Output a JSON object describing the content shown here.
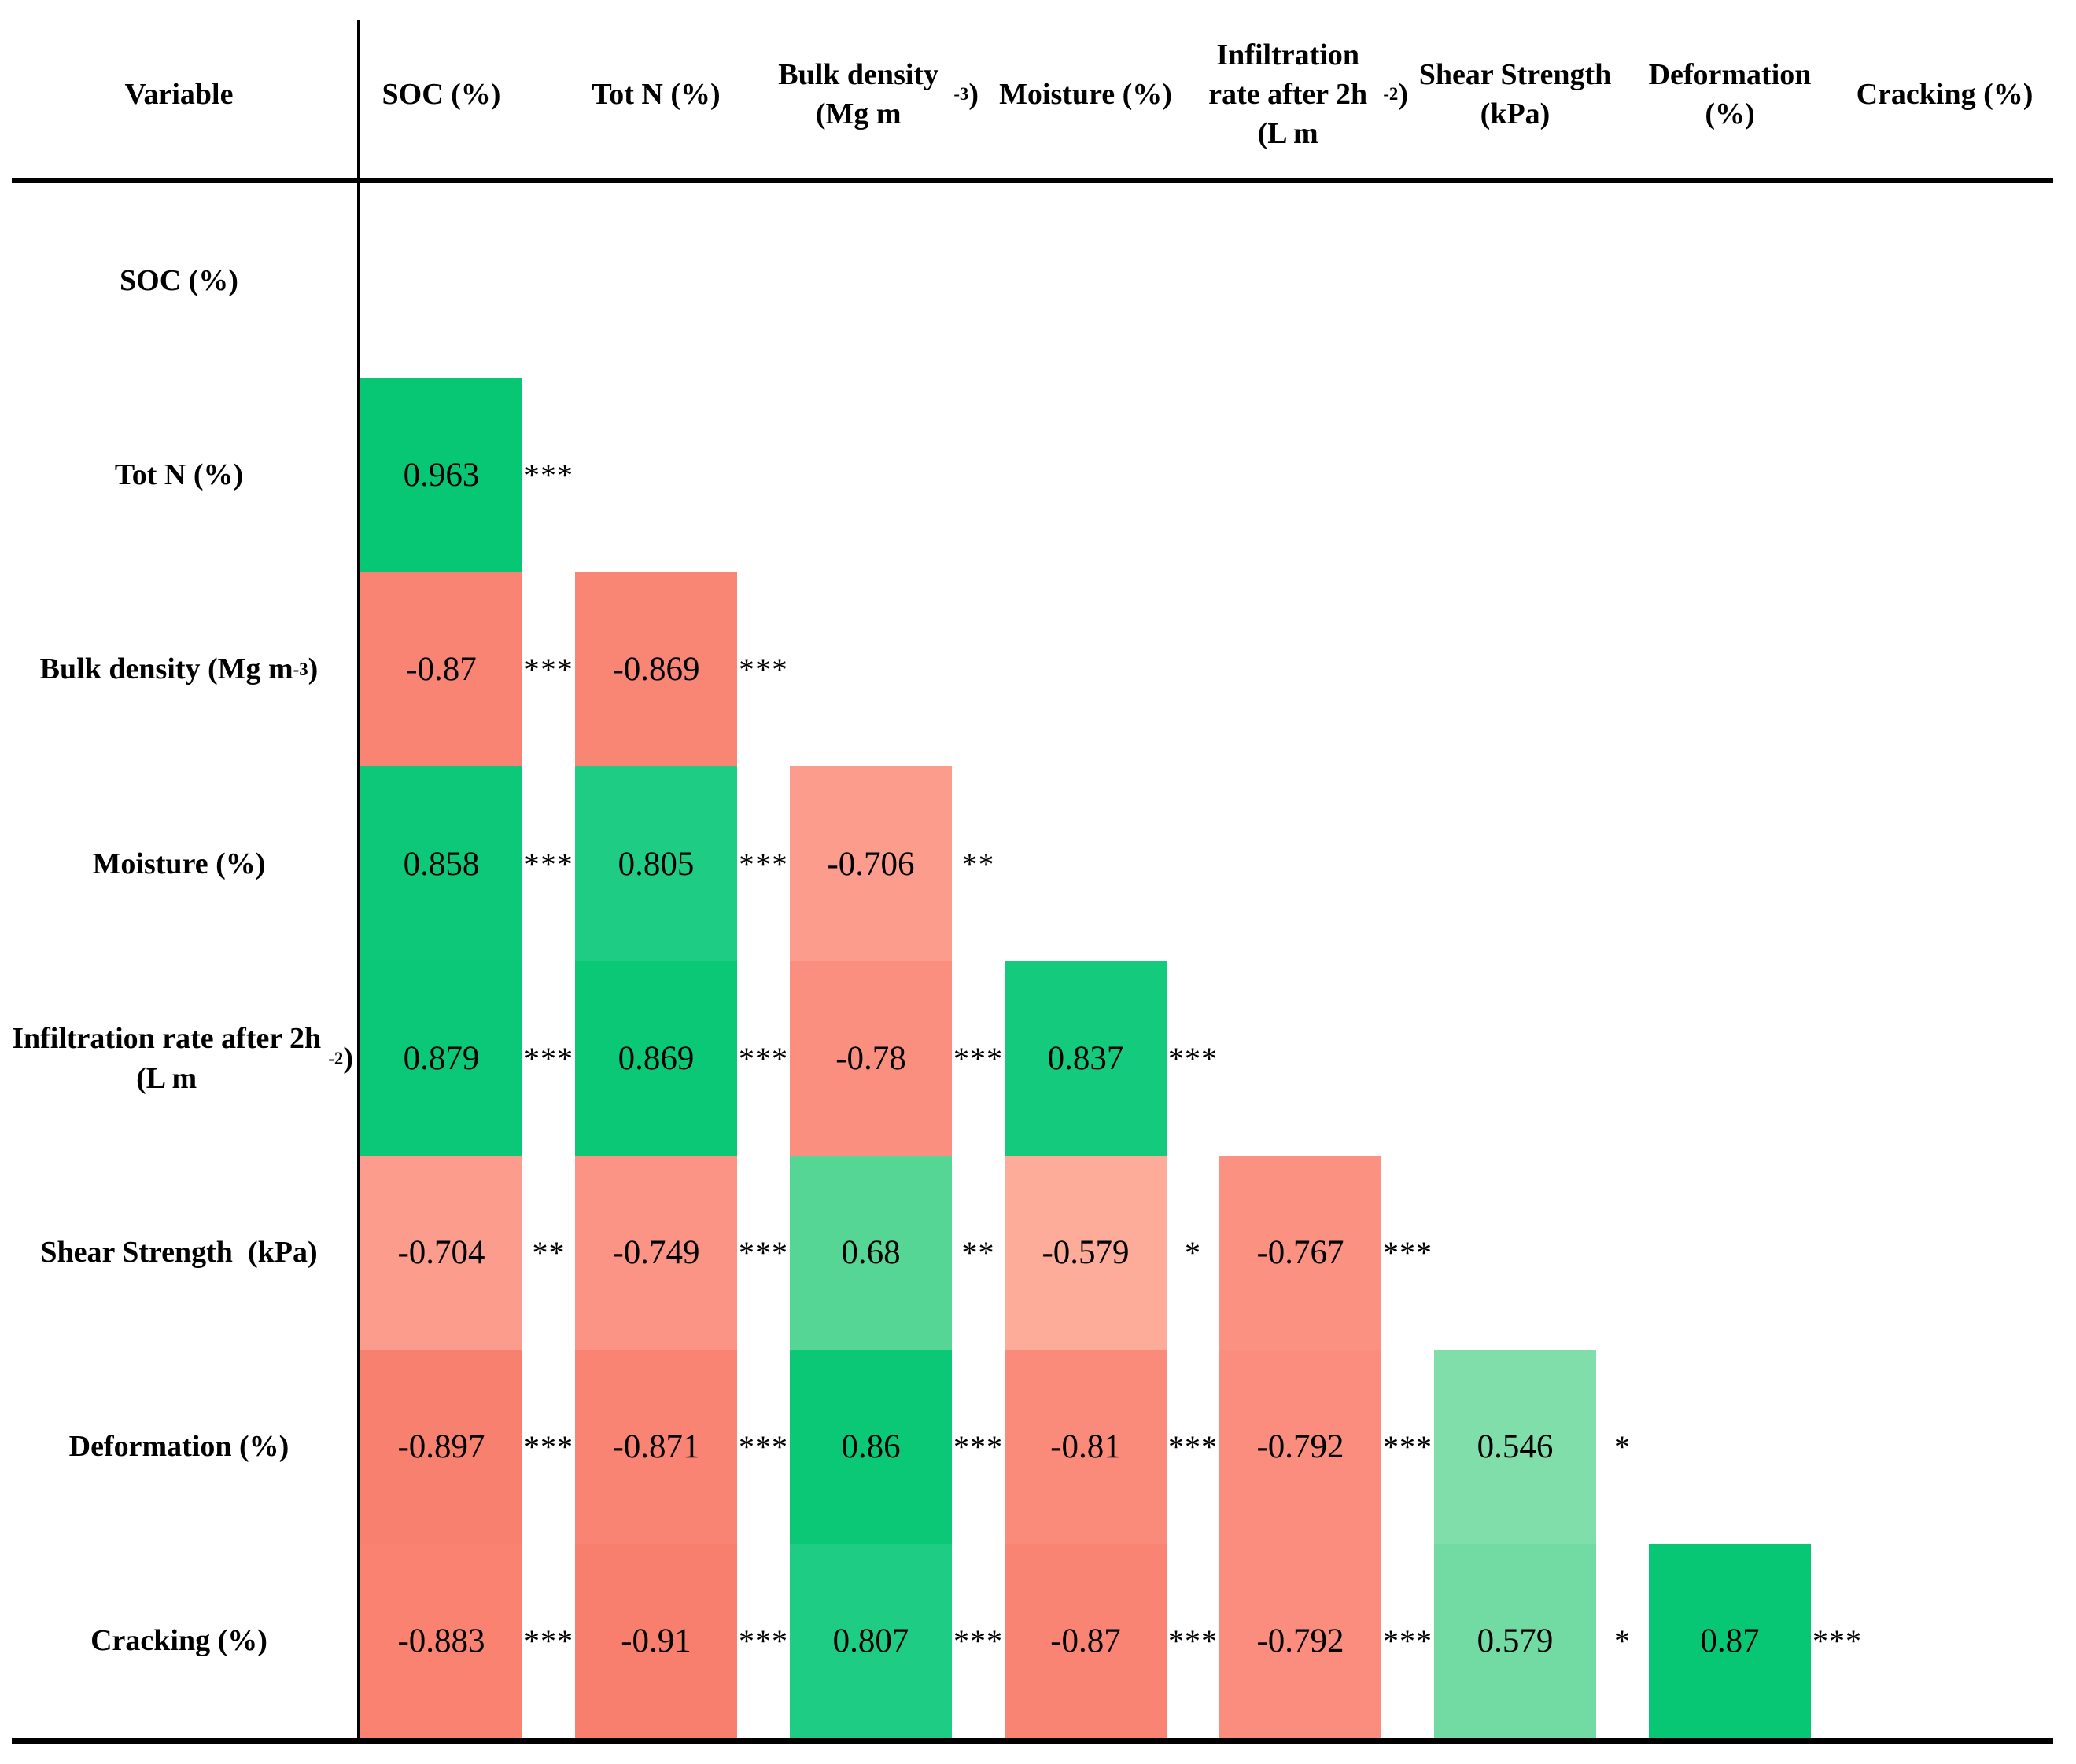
{
  "chart_data": {
    "type": "heatmap",
    "title": "",
    "corner_label": "Variable",
    "legend": "none",
    "grid": "off",
    "styles": {
      "background": "#FFFFFF",
      "text_color": "#000000",
      "line_color": "#000000",
      "positive_strong_color": "#0BC877",
      "positive_weak_color": "#80DEAB",
      "negative_strong_color": "#F87E6D",
      "negative_weak_color": "#FCAC99"
    },
    "columns": [
      {
        "label_parts": [
          {
            "t": "SOC (%)"
          }
        ]
      },
      {
        "label_parts": [
          {
            "t": "Tot N (%)"
          }
        ]
      },
      {
        "label_parts": [
          {
            "t": "Bulk density (Mg m"
          },
          {
            "t": "-3",
            "sup": true
          },
          {
            "t": ")"
          }
        ]
      },
      {
        "label_parts": [
          {
            "t": "Moisture (%)"
          }
        ]
      },
      {
        "label_parts": [
          {
            "t": "Infiltration rate after 2h (L m"
          },
          {
            "t": "-2",
            "sup": true
          },
          {
            "t": ")"
          }
        ]
      },
      {
        "label_parts": [
          {
            "t": "Shear Strength (kPa)"
          }
        ]
      },
      {
        "label_parts": [
          {
            "t": "Deformation (%)"
          }
        ]
      },
      {
        "label_parts": [
          {
            "t": "Cracking (%)"
          }
        ]
      }
    ],
    "rows": [
      {
        "variable": "SOC (%)",
        "label_parts": [
          {
            "t": "SOC (%)"
          }
        ],
        "cells": []
      },
      {
        "variable": "Tot N (%)",
        "label_parts": [
          {
            "t": "Tot N (%)"
          }
        ],
        "cells": [
          {
            "vs": "SOC (%)",
            "value": "0.963",
            "stars": "***",
            "color": "#07C775"
          }
        ]
      },
      {
        "variable": "Bulk density (Mg m-3)",
        "label_parts": [
          {
            "t": "Bulk density (Mg m"
          },
          {
            "t": "-3",
            "sup": true
          },
          {
            "t": ")"
          }
        ],
        "cells": [
          {
            "vs": "SOC (%)",
            "value": "-0.87",
            "stars": "***",
            "color": "#F98474"
          },
          {
            "vs": "Tot N (%)",
            "value": "-0.869",
            "stars": "***",
            "color": "#F98575"
          }
        ]
      },
      {
        "variable": "Moisture (%)",
        "label_parts": [
          {
            "t": "Moisture (%)"
          }
        ],
        "cells": [
          {
            "vs": "SOC (%)",
            "value": "0.858",
            "stars": "***",
            "color": "#0CC878"
          },
          {
            "vs": "Tot N (%)",
            "value": "0.805",
            "stars": "***",
            "color": "#1FCC84"
          },
          {
            "vs": "Bulk density (Mg m-3)",
            "value": "-0.706",
            "stars": "**",
            "color": "#FB9C8C"
          }
        ]
      },
      {
        "variable": "Infiltration rate after 2h (L m-2)",
        "label_parts": [
          {
            "t": "Infiltration rate after 2h (L m"
          },
          {
            "t": "-2",
            "sup": true
          },
          {
            "t": ")"
          }
        ],
        "cells": [
          {
            "vs": "SOC (%)",
            "value": "0.879",
            "stars": "***",
            "color": "#0AC877"
          },
          {
            "vs": "Tot N (%)",
            "value": "0.869",
            "stars": "***",
            "color": "#0BC877"
          },
          {
            "vs": "Bulk density (Mg m-3)",
            "value": "-0.78",
            "stars": "***",
            "color": "#FA8F7F"
          },
          {
            "vs": "Moisture (%)",
            "value": "0.837",
            "stars": "***",
            "color": "#14CA7D"
          }
        ]
      },
      {
        "variable": "Shear Strength (kPa)",
        "label_parts": [
          {
            "t": "Shear Strength  (kPa)"
          }
        ],
        "cells": [
          {
            "vs": "SOC (%)",
            "value": "-0.704",
            "stars": "**",
            "color": "#FB9C8C"
          },
          {
            "vs": "Tot N (%)",
            "value": "-0.749",
            "stars": "***",
            "color": "#FB9485"
          },
          {
            "vs": "Bulk density (Mg m-3)",
            "value": "0.68",
            "stars": "**",
            "color": "#55D694"
          },
          {
            "vs": "Moisture (%)",
            "value": "-0.579",
            "stars": "*",
            "color": "#FCAC99"
          },
          {
            "vs": "Infiltration rate after 2h (L m-2)",
            "value": "-0.767",
            "stars": "***",
            "color": "#FA9181"
          }
        ]
      },
      {
        "variable": "Deformation (%)",
        "label_parts": [
          {
            "t": "Deformation (%)"
          }
        ],
        "cells": [
          {
            "vs": "SOC (%)",
            "value": "-0.897",
            "stars": "***",
            "color": "#F8806F"
          },
          {
            "vs": "Tot N (%)",
            "value": "-0.871",
            "stars": "***",
            "color": "#F98474"
          },
          {
            "vs": "Bulk density (Mg m-3)",
            "value": "0.86",
            "stars": "***",
            "color": "#0BC877"
          },
          {
            "vs": "Moisture (%)",
            "value": "-0.81",
            "stars": "***",
            "color": "#FA8A7A"
          },
          {
            "vs": "Infiltration rate after 2h (L m-2)",
            "value": "-0.792",
            "stars": "***",
            "color": "#FA8D7D"
          },
          {
            "vs": "Shear Strength (kPa)",
            "value": "0.546",
            "stars": "*",
            "color": "#80DEAB"
          }
        ]
      },
      {
        "variable": "Cracking (%)",
        "label_parts": [
          {
            "t": "Cracking (%)"
          }
        ],
        "cells": [
          {
            "vs": "SOC (%)",
            "value": "-0.883",
            "stars": "***",
            "color": "#F98271"
          },
          {
            "vs": "Tot N (%)",
            "value": "-0.91",
            "stars": "***",
            "color": "#F87E6D"
          },
          {
            "vs": "Bulk density (Mg m-3)",
            "value": "0.807",
            "stars": "***",
            "color": "#1FCC84"
          },
          {
            "vs": "Moisture (%)",
            "value": "-0.87",
            "stars": "***",
            "color": "#F98474"
          },
          {
            "vs": "Infiltration rate after 2h (L m-2)",
            "value": "-0.792",
            "stars": "***",
            "color": "#FA8D7D"
          },
          {
            "vs": "Shear Strength (kPa)",
            "value": "0.579",
            "stars": "*",
            "color": "#72DBA3"
          },
          {
            "vs": "Deformation (%)",
            "value": "0.87",
            "stars": "***",
            "color": "#07C775"
          }
        ]
      }
    ]
  }
}
